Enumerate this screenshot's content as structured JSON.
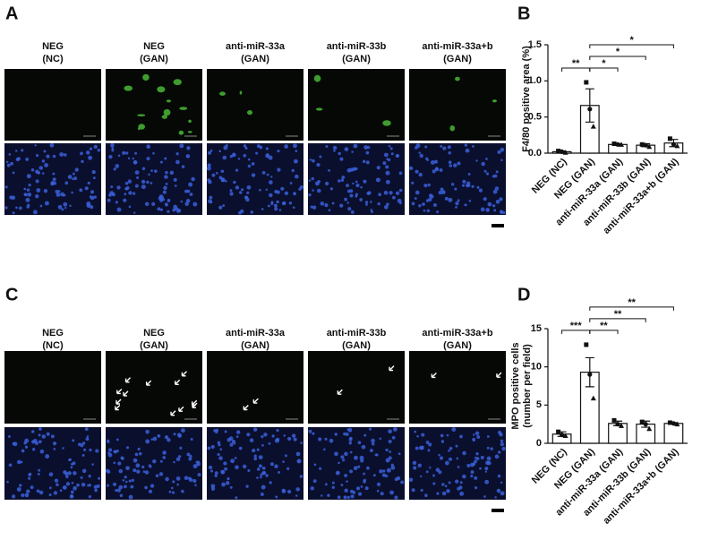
{
  "panels": [
    {
      "label": "A",
      "columns": [
        [
          "NEG",
          "(NC)"
        ],
        [
          "NEG",
          "(GAN)"
        ],
        [
          "anti-miR-33a",
          "(GAN)"
        ],
        [
          "anti-miR-33b",
          "(GAN)"
        ],
        [
          "anti-miR-33a+b",
          "(GAN)"
        ]
      ]
    },
    {
      "label": "C",
      "columns": [
        [
          "NEG",
          "(NC)"
        ],
        [
          "NEG",
          "(GAN)"
        ],
        [
          "anti-miR-33a",
          "(GAN)"
        ],
        [
          "anti-miR-33b",
          "(GAN)"
        ],
        [
          "anti-miR-33a+b",
          "(GAN)"
        ]
      ]
    }
  ],
  "chart_data": [
    {
      "type": "bar",
      "panel": "B",
      "ylabel": [
        "F4/80 positive area (%)"
      ],
      "categories": [
        "NEG (NC)",
        "NEG (GAN)",
        "anti-miR-33a (GAN)",
        "anti-miR-33b (GAN)",
        "anti-miR-33a+b (GAN)"
      ],
      "values": [
        0.02,
        0.66,
        0.12,
        0.11,
        0.14
      ],
      "errors": [
        0.01,
        0.23,
        0.01,
        0.02,
        0.05
      ],
      "points": [
        [
          0.03,
          0.02,
          0.01
        ],
        [
          0.98,
          0.61,
          0.37
        ],
        [
          0.13,
          0.12,
          0.12
        ],
        [
          0.12,
          0.11,
          0.09
        ],
        [
          0.2,
          0.12,
          0.1
        ]
      ],
      "ylim": [
        0,
        1.5
      ],
      "yticks": [
        {
          "value": 0,
          "label": "0.0"
        },
        {
          "value": 0.5,
          "label": "0.5"
        },
        {
          "value": 1,
          "label": "1.0"
        },
        {
          "value": 1.5,
          "label": "1.5"
        }
      ],
      "comparisons": [
        {
          "from": 0,
          "to": 1,
          "label": "**"
        },
        {
          "from": 1,
          "to": 2,
          "label": "*"
        },
        {
          "from": 1,
          "to": 3,
          "label": "*"
        },
        {
          "from": 1,
          "to": 4,
          "label": "*"
        }
      ],
      "color": "#ffffff"
    },
    {
      "type": "bar",
      "panel": "D",
      "ylabel": [
        "MPO positive cells",
        "(number per field)"
      ],
      "categories": [
        "NEG (NC)",
        "NEG (GAN)",
        "anti-miR-33a (GAN)",
        "anti-miR-33b (GAN)",
        "anti-miR-33a+b (GAN)"
      ],
      "values": [
        1.2,
        9.3,
        2.6,
        2.5,
        2.6
      ],
      "errors": [
        0.3,
        1.9,
        0.3,
        0.4,
        0.1
      ],
      "points": [
        [
          1.5,
          1.1,
          1.0
        ],
        [
          12.9,
          9.0,
          5.9
        ],
        [
          3.0,
          2.5,
          2.3
        ],
        [
          2.8,
          2.5,
          1.9
        ],
        [
          2.7,
          2.6,
          2.5
        ]
      ],
      "ylim": [
        0,
        15
      ],
      "yticks": [
        0,
        5,
        10,
        15
      ],
      "comparisons": [
        {
          "from": 0,
          "to": 1,
          "label": "***"
        },
        {
          "from": 1,
          "to": 2,
          "label": "**"
        },
        {
          "from": 1,
          "to": 3,
          "label": "**"
        },
        {
          "from": 1,
          "to": 4,
          "label": "**"
        }
      ],
      "color": "#ffffff"
    }
  ]
}
